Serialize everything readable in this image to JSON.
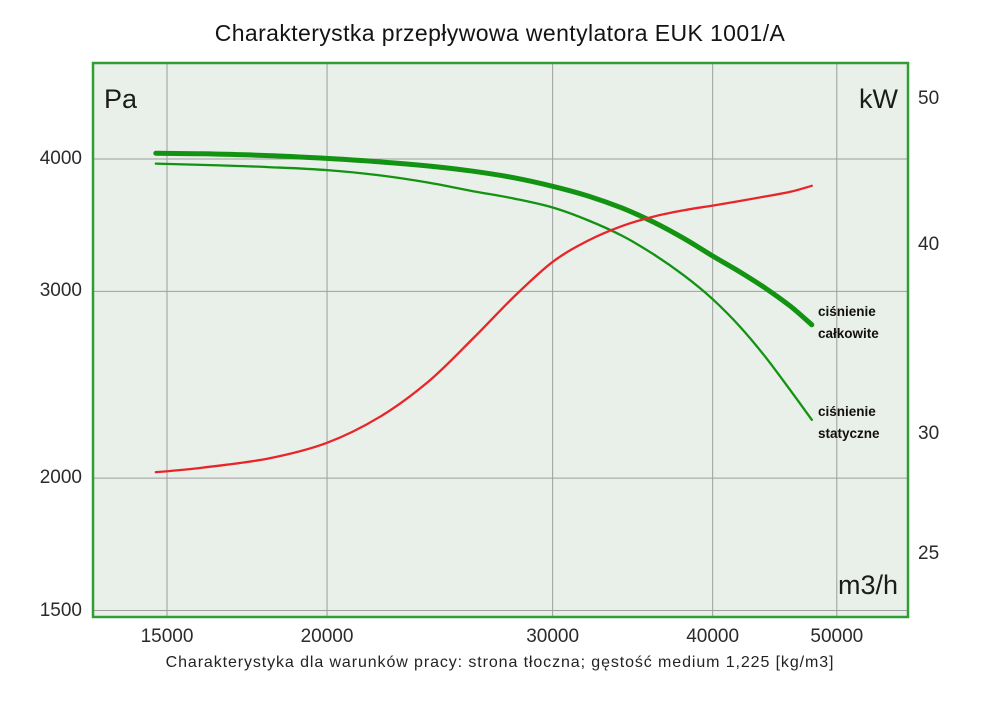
{
  "title": "Charakterystka przepływowa wentylatora EUK 1001/A",
  "caption": "Charakterystyka dla warunków pracy: strona tłoczna; gęstość medium 1,225 [kg/m3]",
  "chart_data": {
    "type": "line",
    "title": "Charakterystka przepływowa wentylatora EUK 1001/A",
    "caption": "Charakterystyka dla warunków pracy: strona tłoczna; gęstość medium 1,225 [kg/m3]",
    "grid": true,
    "plot_bg_color": "#e9efe9",
    "border_color": "#2f9e33",
    "gridline_color": "#9e9e9e",
    "x_axis": {
      "unit_label": "m3/h",
      "scale": "log",
      "ticks": [
        15000,
        20000,
        30000,
        40000,
        50000
      ],
      "range": [
        13150,
        56700
      ],
      "gridlines": true
    },
    "y_left_axis": {
      "unit_label": "Pa",
      "scale": "log",
      "ticks": [
        4000,
        3000,
        2000,
        1500
      ],
      "range": [
        1460,
        4930
      ],
      "gridlines": true
    },
    "y_right_axis": {
      "unit_label": "kW",
      "scale": "log",
      "ticks": [
        50,
        40,
        30,
        25
      ],
      "range": [
        22.7,
        52.9
      ],
      "gridlines": false
    },
    "series": [
      {
        "name": "ciśnienie całkowite",
        "label_lines": [
          "ciśnienie",
          "całkowite"
        ],
        "axis": "left",
        "color": "#129312",
        "stroke_width": 5,
        "points": [
          [
            14700,
            4050
          ],
          [
            16000,
            4045
          ],
          [
            18000,
            4030
          ],
          [
            20000,
            4005
          ],
          [
            22000,
            3975
          ],
          [
            24000,
            3940
          ],
          [
            26000,
            3895
          ],
          [
            28000,
            3840
          ],
          [
            30000,
            3770
          ],
          [
            32000,
            3690
          ],
          [
            34000,
            3595
          ],
          [
            36000,
            3485
          ],
          [
            38000,
            3365
          ],
          [
            40000,
            3240
          ],
          [
            42000,
            3130
          ],
          [
            44000,
            3020
          ],
          [
            46000,
            2905
          ],
          [
            47800,
            2790
          ]
        ]
      },
      {
        "name": "ciśnienie statyczne",
        "label_lines": [
          "ciśnienie",
          "statyczne"
        ],
        "axis": "left",
        "color": "#129312",
        "stroke_width": 2.3,
        "points": [
          [
            14700,
            3960
          ],
          [
            16500,
            3945
          ],
          [
            18000,
            3930
          ],
          [
            20000,
            3905
          ],
          [
            22000,
            3860
          ],
          [
            24000,
            3800
          ],
          [
            26000,
            3730
          ],
          [
            28000,
            3670
          ],
          [
            30000,
            3600
          ],
          [
            32000,
            3500
          ],
          [
            34000,
            3385
          ],
          [
            36000,
            3250
          ],
          [
            38000,
            3105
          ],
          [
            40000,
            2950
          ],
          [
            42000,
            2780
          ],
          [
            44000,
            2600
          ],
          [
            46000,
            2420
          ],
          [
            47800,
            2270
          ]
        ]
      },
      {
        "name": "",
        "label_lines": [],
        "axis": "right",
        "color": "#e8262a",
        "stroke_width": 2.3,
        "points": [
          [
            14700,
            28.3
          ],
          [
            16000,
            28.5
          ],
          [
            18000,
            28.9
          ],
          [
            20000,
            29.6
          ],
          [
            22000,
            30.8
          ],
          [
            24000,
            32.5
          ],
          [
            26000,
            34.7
          ],
          [
            28000,
            37.0
          ],
          [
            30000,
            39.0
          ],
          [
            32000,
            40.3
          ],
          [
            34000,
            41.2
          ],
          [
            36000,
            41.8
          ],
          [
            38000,
            42.2
          ],
          [
            40000,
            42.5
          ],
          [
            42000,
            42.8
          ],
          [
            44000,
            43.1
          ],
          [
            46000,
            43.4
          ],
          [
            47800,
            43.8
          ]
        ]
      }
    ]
  }
}
